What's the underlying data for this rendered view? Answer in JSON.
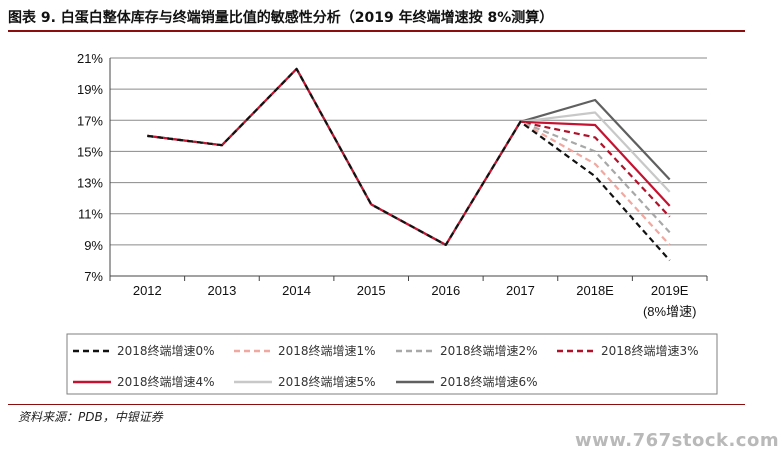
{
  "figure": {
    "title": "图表 9. 白蛋白整体库存与终端销量比值的敏感性分析（2019 年终端增速按 8%测算）",
    "source": "资料来源：PDB，中银证券",
    "watermark": "www.767stock.com"
  },
  "chart_data": {
    "type": "line",
    "categories": [
      "2012",
      "2013",
      "2014",
      "2015",
      "2016",
      "2017",
      "2018E",
      "2019E"
    ],
    "x_tick_extra": {
      "2019E": "(8%增速)"
    },
    "ylim": [
      7,
      21
    ],
    "y_ticks": [
      "7%",
      "9%",
      "11%",
      "13%",
      "15%",
      "17%",
      "19%",
      "21%"
    ],
    "y_unit": "%",
    "grid": "horizontal",
    "legend_position": "bottom",
    "series": [
      {
        "name": "2018终端增速0%",
        "color": "#111111",
        "dash": "dashed",
        "values": [
          16.0,
          15.4,
          20.3,
          11.6,
          9.0,
          16.9,
          13.4,
          8.0
        ]
      },
      {
        "name": "2018终端增速1%",
        "color": "#f0a8a0",
        "dash": "dashed",
        "values": [
          16.0,
          15.4,
          20.3,
          11.6,
          9.0,
          16.9,
          14.2,
          9.0
        ]
      },
      {
        "name": "2018终端增速2%",
        "color": "#a8a8a8",
        "dash": "dashed",
        "values": [
          16.0,
          15.4,
          20.3,
          11.6,
          9.0,
          16.9,
          15.0,
          9.8
        ]
      },
      {
        "name": "2018终端增速3%",
        "color": "#b0122a",
        "dash": "dashed",
        "values": [
          16.0,
          15.4,
          20.3,
          11.6,
          9.0,
          16.9,
          15.9,
          10.8
        ]
      },
      {
        "name": "2018终端增速4%",
        "color": "#c41230",
        "dash": "solid",
        "values": [
          16.0,
          15.4,
          20.3,
          11.6,
          9.0,
          16.9,
          16.7,
          11.5
        ]
      },
      {
        "name": "2018终端增速5%",
        "color": "#c8c8c8",
        "dash": "solid",
        "values": [
          16.0,
          15.4,
          20.3,
          11.6,
          9.0,
          16.9,
          17.5,
          12.4
        ]
      },
      {
        "name": "2018终端增速6%",
        "color": "#606060",
        "dash": "solid",
        "values": [
          16.0,
          15.4,
          20.3,
          11.6,
          9.0,
          16.9,
          18.3,
          13.2
        ]
      }
    ]
  }
}
